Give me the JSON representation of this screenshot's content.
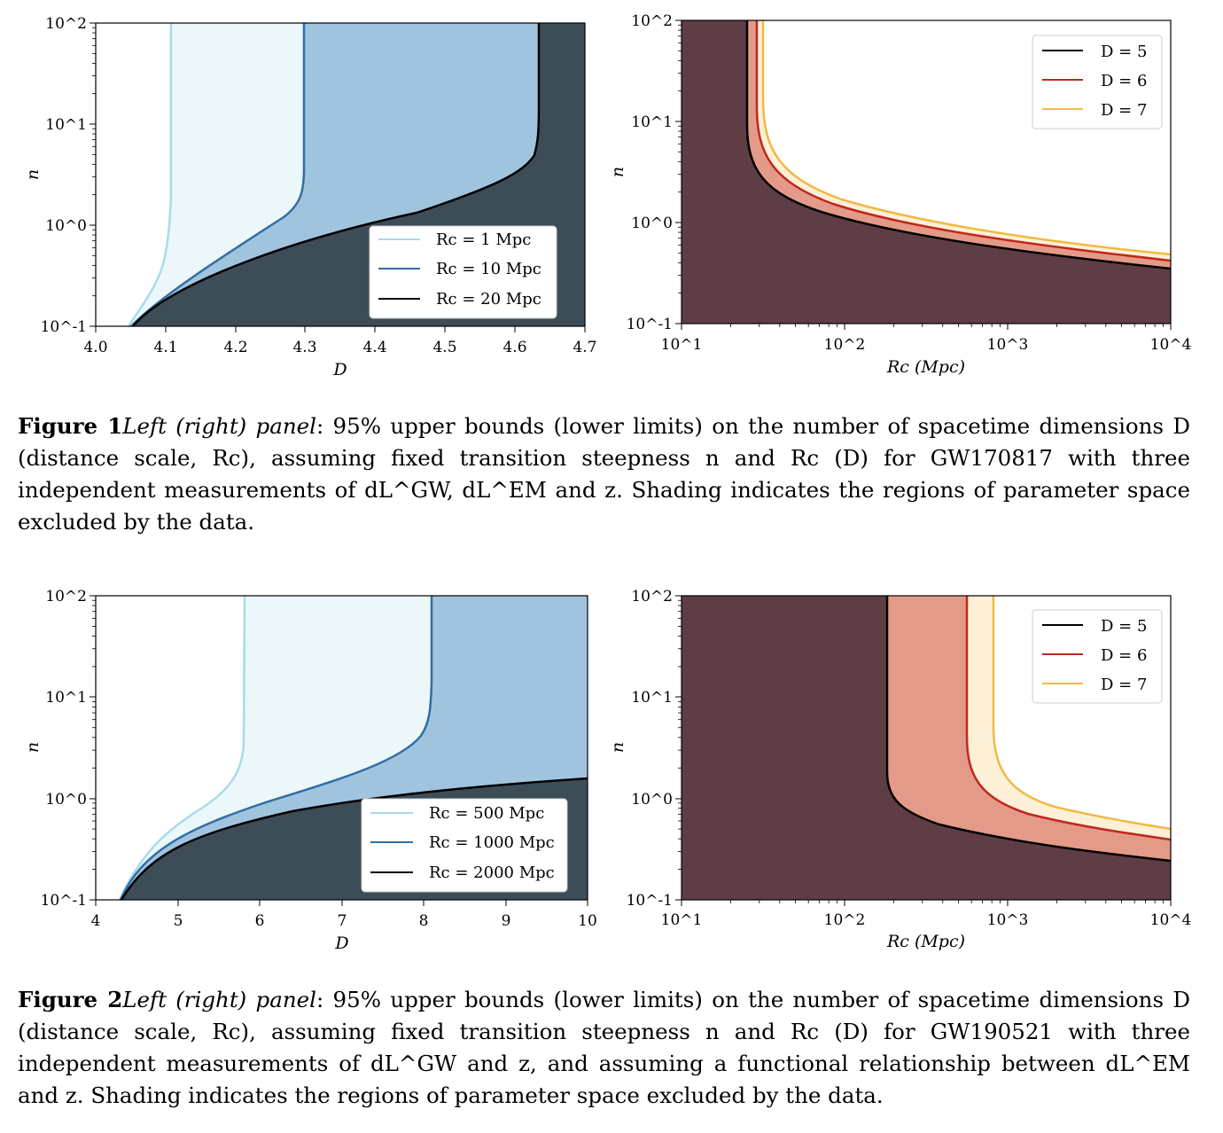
{
  "figure1": {
    "caption": {
      "label": "Figure 1",
      "panel": "Left (right) panel",
      "text": ": 95% upper bounds (lower limits) on the number of spacetime dimensions D (distance scale, Rc), assuming fixed transition steepness n and Rc (D) for GW170817 with three independent measurements of dL^GW, dL^EM and z.  Shading indicates the regions of parameter space excluded by the data."
    },
    "left_panel": {
      "xlabel": "D",
      "ylabel": "n",
      "x_ticks": [
        "4.0",
        "4.1",
        "4.2",
        "4.3",
        "4.4",
        "4.5",
        "4.6",
        "4.7"
      ],
      "y_ticks": [
        "10^-1",
        "10^0",
        "10^1",
        "10^2"
      ],
      "legend": [
        "Rc = 1 Mpc",
        "Rc = 10 Mpc",
        "Rc = 20 Mpc"
      ]
    },
    "right_panel": {
      "xlabel": "Rc (Mpc)",
      "ylabel": "n",
      "x_ticks": [
        "10^1",
        "10^2",
        "10^3",
        "10^4"
      ],
      "y_ticks": [
        "10^-1",
        "10^0",
        "10^1",
        "10^2"
      ],
      "legend": [
        "D = 5",
        "D = 6",
        "D = 7"
      ]
    }
  },
  "figure2": {
    "caption": {
      "label": "Figure 2",
      "panel": "Left (right) panel",
      "text": ": 95% upper bounds (lower limits) on the number of spacetime dimensions D (distance scale, Rc), assuming fixed transition steepness n and Rc (D) for GW190521 with three independent measurements of dL^GW and z, and assuming a functional relationship between dL^EM and z. Shading indicates the regions of parameter space excluded by the data."
    },
    "left_panel": {
      "xlabel": "D",
      "ylabel": "n",
      "x_ticks": [
        "4",
        "5",
        "6",
        "7",
        "8",
        "9",
        "10"
      ],
      "y_ticks": [
        "10^-1",
        "10^0",
        "10^1",
        "10^2"
      ],
      "legend": [
        "Rc = 500 Mpc",
        "Rc = 1000 Mpc",
        "Rc = 2000 Mpc"
      ]
    },
    "right_panel": {
      "xlabel": "Rc (Mpc)",
      "ylabel": "n",
      "x_ticks": [
        "10^1",
        "10^2",
        "10^3",
        "10^4"
      ],
      "y_ticks": [
        "10^-1",
        "10^0",
        "10^1",
        "10^2"
      ],
      "legend": [
        "D = 5",
        "D = 6",
        "D = 7"
      ]
    }
  },
  "colors": {
    "light_blue_line": "#a8dbe9",
    "light_blue_fill": "#ecf7fa",
    "mid_blue_line": "#2f6ea6",
    "mid_blue_fill": "#a1c4de",
    "dark_fill": "#3c4d58",
    "maroon_fill": "#5e3d44",
    "salmon_fill": "#e39a88",
    "cream_fill": "#fdf0d7",
    "red_line": "#c0271c",
    "yellow_line": "#f1b944"
  }
}
